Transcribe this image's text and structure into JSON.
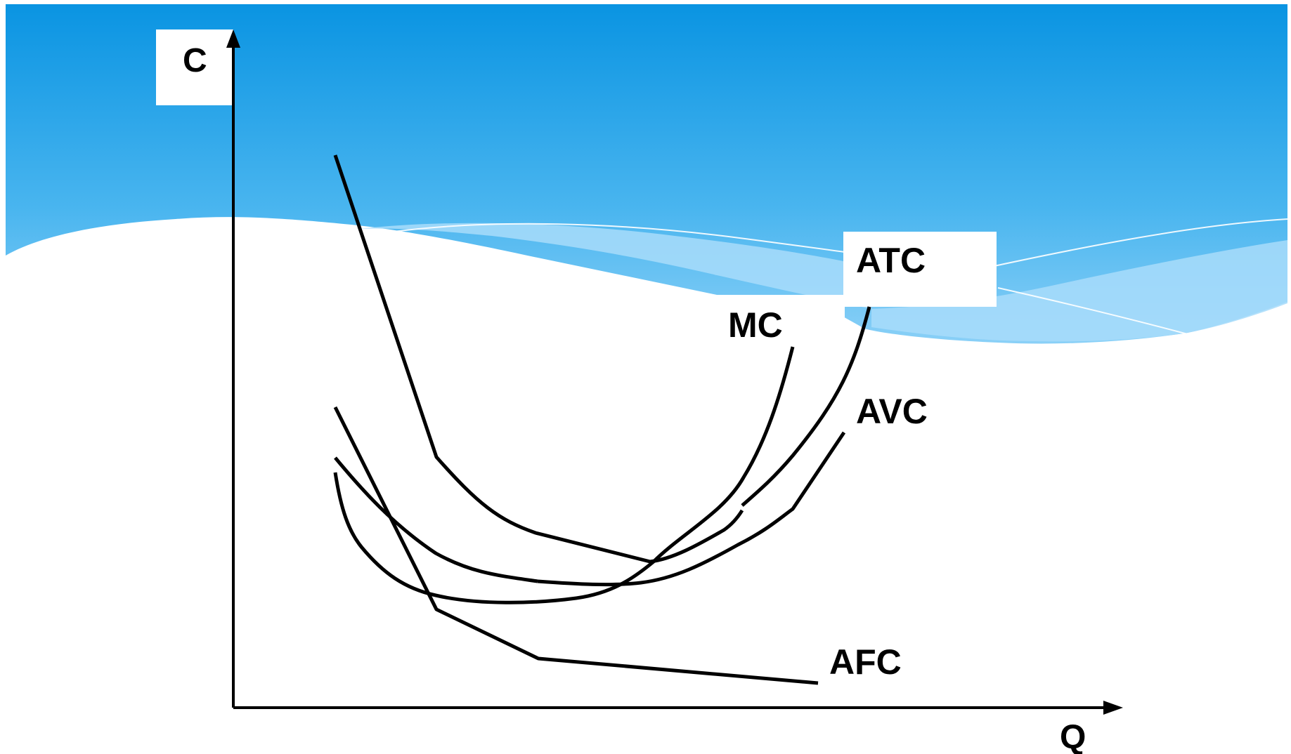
{
  "diagram": {
    "axis_y_label": "C",
    "axis_x_label": "Q",
    "curves": {
      "mc": "MC",
      "atc": "ATC",
      "avc": "AVC",
      "afc": "AFC"
    }
  },
  "colors": {
    "sky_top": "#0a94e2",
    "sky_bottom": "#7cc8f5",
    "wave_light": "#a8dcfa",
    "ink": "#000000"
  }
}
